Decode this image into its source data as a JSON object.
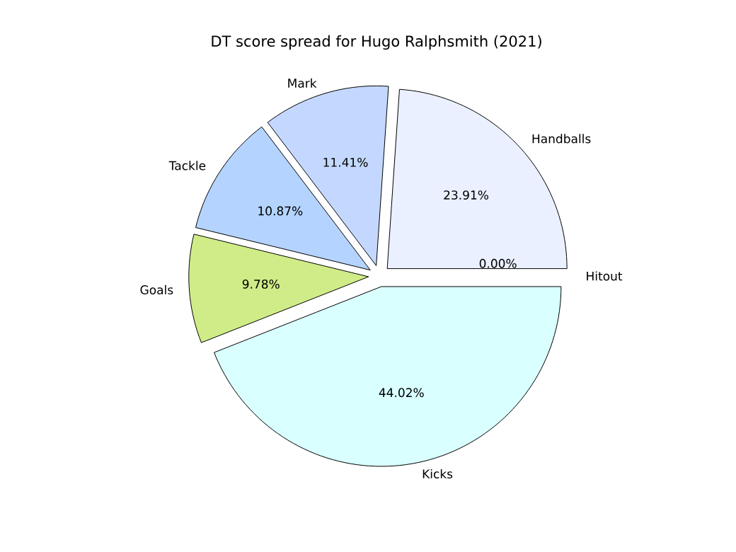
{
  "chart_data": {
    "type": "pie",
    "title": "DT score spread for Hugo Ralphsmith (2021)",
    "categories": [
      "Handballs",
      "Mark",
      "Tackle",
      "Goals",
      "Kicks",
      "Hitout"
    ],
    "values": [
      23.91,
      11.41,
      10.87,
      9.78,
      44.02,
      0
    ],
    "value_labels": [
      "23.91%",
      "11.41%",
      "10.87%",
      "9.78%",
      "44.02%",
      "0.00%"
    ],
    "colors": [
      "#eaf0ff",
      "#c4d8ff",
      "#b4d4ff",
      "#d0ec88",
      "#d9ffff",
      "#ffe4c4"
    ],
    "legend": false
  }
}
